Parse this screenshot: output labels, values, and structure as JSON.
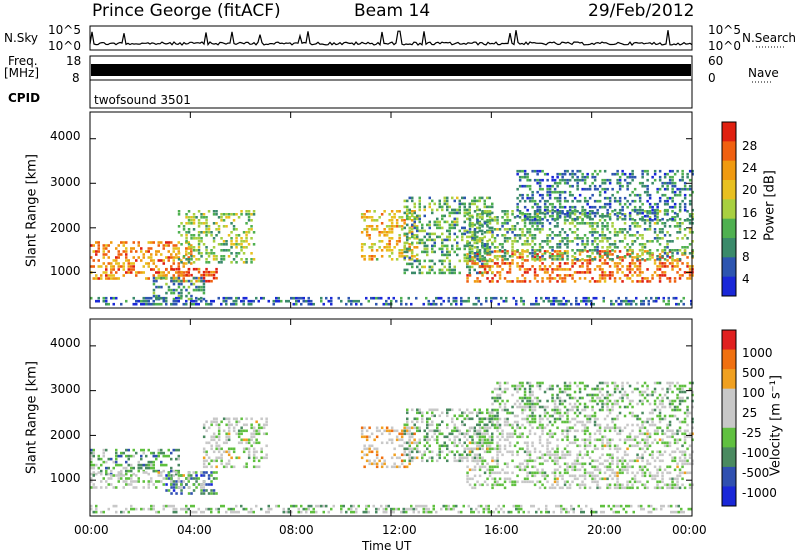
{
  "header": {
    "station": "Prince George (fitACF)",
    "beam": "Beam 14",
    "date": "29/Feb/2012"
  },
  "top_panels": {
    "nsky_label": "N.Sky",
    "nsky_ticks": [
      "10^5",
      "10^0"
    ],
    "nsearch_label": "N.Search",
    "nsearch_ticks": [
      "10^5",
      "10^0"
    ],
    "freq_label_1": "Freq.",
    "freq_label_2": "[MHz]",
    "freq_ticks": [
      "18",
      "8"
    ],
    "nave_label": "Nave",
    "nave_ticks": [
      "60",
      "0"
    ],
    "cpid_label": "CPID",
    "cpid_value": "twofsound 3501"
  },
  "colors": {
    "power_scale": [
      "#1a28d8",
      "#2d55b0",
      "#3a8a6a",
      "#4fb050",
      "#a8d040",
      "#e8c020",
      "#f09a10",
      "#f06010",
      "#e02010"
    ],
    "velocity_scale": [
      "#1a28d8",
      "#3050b0",
      "#4a8a60",
      "#60c040",
      "#c8c8c8",
      "#c8c8c8",
      "#f0a020",
      "#f07010",
      "#e02020"
    ]
  },
  "chart_data": [
    {
      "type": "heatmap",
      "panel": "power",
      "ylabel": "Slant Range [km]",
      "yticks": [
        "4000",
        "3000",
        "2000",
        "1000"
      ],
      "ylim": [
        200,
        4600
      ],
      "xlim": [
        0,
        24
      ],
      "colorbar_label": "Power [dB]",
      "colorbar_ticks": [
        "28",
        "24",
        "20",
        "16",
        "12",
        "8",
        "4"
      ],
      "clim": [
        0,
        32
      ],
      "regions": [
        {
          "t0": 0.0,
          "t1": 4.0,
          "r0": 850,
          "r1": 1700,
          "value": 24
        },
        {
          "t0": 3.0,
          "t1": 5.0,
          "r0": 800,
          "r1": 1100,
          "value": 28
        },
        {
          "t0": 2.5,
          "t1": 4.5,
          "r0": 400,
          "r1": 900,
          "value": 10
        },
        {
          "t0": 3.5,
          "t1": 6.5,
          "r0": 1200,
          "r1": 2400,
          "value": 14
        },
        {
          "t0": 10.8,
          "t1": 13.0,
          "r0": 1300,
          "r1": 2400,
          "value": 20
        },
        {
          "t0": 12.5,
          "t1": 16.0,
          "r0": 1000,
          "r1": 2700,
          "value": 12
        },
        {
          "t0": 15.0,
          "t1": 24.0,
          "r0": 800,
          "r1": 1500,
          "value": 26
        },
        {
          "t0": 15.0,
          "t1": 24.0,
          "r0": 1300,
          "r1": 2400,
          "value": 12
        },
        {
          "t0": 17.0,
          "t1": 24.0,
          "r0": 2200,
          "r1": 3300,
          "value": 8
        },
        {
          "t0": 0.0,
          "t1": 24.0,
          "r0": 250,
          "r1": 450,
          "value": 6
        }
      ]
    },
    {
      "type": "heatmap",
      "panel": "velocity",
      "ylabel": "Slant Range [km]",
      "yticks": [
        "4000",
        "3000",
        "2000",
        "1000"
      ],
      "ylim": [
        200,
        4600
      ],
      "xlim": [
        0,
        24
      ],
      "xlabel": "Time UT",
      "xticks": [
        "00:00",
        "04:00",
        "08:00",
        "12:00",
        "16:00",
        "20:00",
        "00:00"
      ],
      "colorbar_label": "Velocity [m s⁻¹]",
      "colorbar_ticks": [
        "1000",
        "500",
        "100",
        "25",
        "-25",
        "-100",
        "-500",
        "-1000"
      ],
      "clim": [
        -1000,
        1000
      ],
      "regions": [
        {
          "t0": 0.0,
          "t1": 3.5,
          "r0": 1100,
          "r1": 1700,
          "value": -300
        },
        {
          "t0": 3.0,
          "t1": 5.0,
          "r0": 700,
          "r1": 1200,
          "value": -500
        },
        {
          "t0": 0.0,
          "t1": 4.5,
          "r0": 800,
          "r1": 1200,
          "value": 0
        },
        {
          "t0": 4.5,
          "t1": 7.0,
          "r0": 1300,
          "r1": 2400,
          "value": 0
        },
        {
          "t0": 10.8,
          "t1": 13.0,
          "r0": 1300,
          "r1": 2200,
          "value": 300
        },
        {
          "t0": 12.5,
          "t1": 16.0,
          "r0": 1400,
          "r1": 2600,
          "value": -200
        },
        {
          "t0": 15.0,
          "t1": 24.0,
          "r0": 800,
          "r1": 2200,
          "value": 0
        },
        {
          "t0": 16.0,
          "t1": 24.0,
          "r0": 2200,
          "r1": 3200,
          "value": -150
        },
        {
          "t0": 0.0,
          "t1": 24.0,
          "r0": 250,
          "r1": 450,
          "value": -100
        }
      ]
    }
  ]
}
